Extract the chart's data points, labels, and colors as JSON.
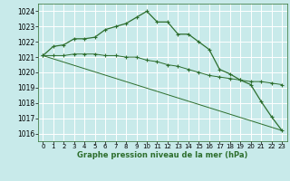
{
  "title": "Graphe pression niveau de la mer (hPa)",
  "background_color": "#c8eaea",
  "grid_color": "#b0d8d8",
  "line_color": "#2d6e2d",
  "xlim": [
    -0.5,
    23.5
  ],
  "ylim": [
    1015.5,
    1024.5
  ],
  "yticks": [
    1016,
    1017,
    1018,
    1019,
    1020,
    1021,
    1022,
    1023,
    1024
  ],
  "xticks": [
    0,
    1,
    2,
    3,
    4,
    5,
    6,
    7,
    8,
    9,
    10,
    11,
    12,
    13,
    14,
    15,
    16,
    17,
    18,
    19,
    20,
    21,
    22,
    23
  ],
  "series1": {
    "x": [
      0,
      1,
      2,
      3,
      4,
      5,
      6,
      7,
      8,
      9,
      10,
      11,
      12,
      13,
      14,
      15,
      16,
      17,
      18,
      19,
      20,
      21,
      22,
      23
    ],
    "y": [
      1021.1,
      1021.7,
      1021.8,
      1022.2,
      1022.2,
      1022.3,
      1022.8,
      1023.0,
      1023.2,
      1023.6,
      1024.0,
      1023.3,
      1023.3,
      1022.5,
      1022.5,
      1022.0,
      1021.5,
      1020.2,
      1019.9,
      1019.5,
      1019.2,
      1018.1,
      1017.1,
      1016.2
    ]
  },
  "series2": {
    "x": [
      0,
      1,
      2,
      3,
      4,
      5,
      6,
      7,
      8,
      9,
      10,
      11,
      12,
      13,
      14,
      15,
      16,
      17,
      18,
      19,
      20,
      21,
      22,
      23
    ],
    "y": [
      1021.1,
      1021.1,
      1021.1,
      1021.2,
      1021.2,
      1021.2,
      1021.1,
      1021.1,
      1021.0,
      1021.0,
      1020.8,
      1020.7,
      1020.5,
      1020.4,
      1020.2,
      1020.0,
      1019.8,
      1019.7,
      1019.6,
      1019.5,
      1019.4,
      1019.4,
      1019.3,
      1019.2
    ]
  },
  "series3": {
    "x": [
      0,
      23
    ],
    "y": [
      1021.1,
      1016.2
    ]
  }
}
